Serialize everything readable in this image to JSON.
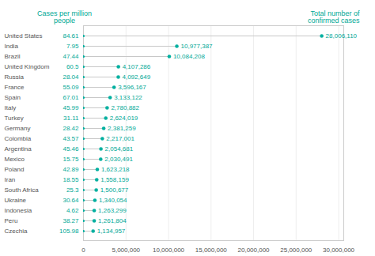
{
  "chart_data": {
    "type": "lollipop",
    "orientation": "horizontal",
    "categories": [
      "United States",
      "India",
      "Brazil",
      "United Kingdom",
      "Russia",
      "France",
      "Spain",
      "Italy",
      "Turkey",
      "Germany",
      "Colombia",
      "Argentina",
      "Mexico",
      "Poland",
      "Iran",
      "South Africa",
      "Ukraine",
      "Indonesia",
      "Peru",
      "Czechia"
    ],
    "series": [
      {
        "name": "Total number of\nconfirmed cases",
        "type": "lollipop",
        "color": "#00b0a0",
        "values": [
          28006110,
          10977387,
          10084208,
          4107286,
          4092649,
          3596167,
          3133122,
          2780882,
          2624019,
          2381259,
          2217001,
          2054681,
          2030491,
          1623218,
          1558159,
          1500677,
          1340054,
          1263299,
          1261804,
          1134957
        ],
        "value_labels": [
          "28,006,110",
          "10,977,387",
          "10,084,208",
          "4,107,286",
          "4,092,649",
          "3,596,167",
          "3,133,122",
          "2,780,882",
          "2,624,019",
          "2,381,259",
          "2,217,001",
          "2,054,681",
          "2,030,491",
          "1,623,218",
          "1,558,159",
          "1,500,677",
          "1,340,054",
          "1,263,299",
          "1,261,804",
          "1,134,957"
        ]
      },
      {
        "name": "Cases per million\npeople",
        "type": "text",
        "color": "#00a896",
        "values": [
          84.61,
          7.95,
          47.44,
          60.5,
          28.04,
          55.09,
          67.01,
          45.99,
          31.11,
          28.42,
          43.57,
          45.46,
          15.75,
          42.89,
          18.55,
          25.3,
          30.64,
          4.62,
          38.27,
          105.98
        ],
        "value_labels": [
          "84.61",
          "7.95",
          "47.44",
          "60.5",
          "28.04",
          "55.09",
          "67.01",
          "45.99",
          "31.11",
          "28.42",
          "43.57",
          "45.46",
          "15.75",
          "42.89",
          "18.55",
          "25.3",
          "30.64",
          "4.62",
          "38.27",
          "105.98"
        ]
      }
    ],
    "xlim": [
      0,
      30600000
    ],
    "xticks": [
      0,
      {
        "value": 5000000,
        "label": "5,000,000"
      },
      {
        "value": 10000000,
        "label": "10,000,000"
      },
      {
        "value": 15000000,
        "label": "15,000,000"
      },
      {
        "value": 20000000,
        "label": "20,000,000"
      },
      {
        "value": 25000000,
        "label": "25,000,000"
      },
      {
        "value": 30000000,
        "label": "30,000,000"
      }
    ],
    "grid": true,
    "data_labels": true
  }
}
